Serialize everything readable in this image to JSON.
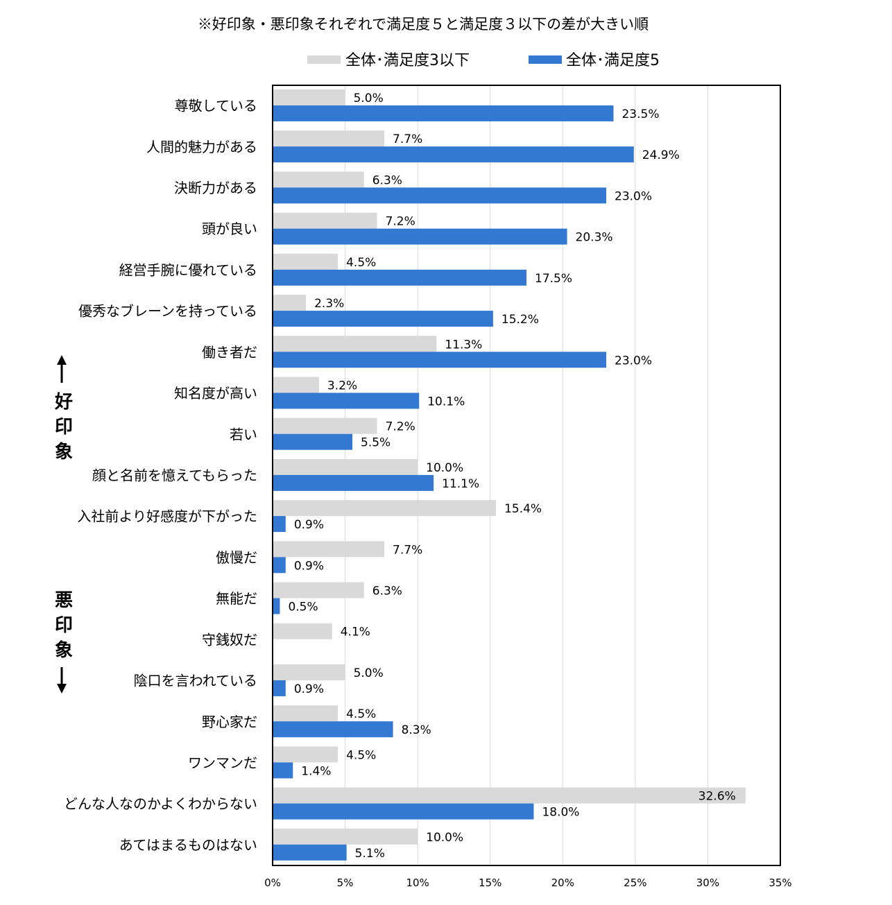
{
  "chart_data": {
    "type": "bar",
    "orientation": "horizontal",
    "title": "※好印象・悪印象それぞれで満足度５と満足度３以下の差が大きい順",
    "categories": [
      "尊敬している",
      "人間的魅力がある",
      "決断力がある",
      "頭が良い",
      "経営手腕に優れている",
      "優秀なブレーンを持っている",
      "働き者だ",
      "知名度が高い",
      "若い",
      "顔と名前を憶えてもらった",
      "入社前より好感度が下がった",
      "傲慢だ",
      "無能だ",
      "守銭奴だ",
      "陰口を言われている",
      "野心家だ",
      "ワンマンだ",
      "どんな人なのかよくわからない",
      "あてはまるものはない"
    ],
    "series": [
      {
        "name": "全体･満足度3以下",
        "color": "#d9d9d9",
        "values": [
          5.0,
          7.7,
          6.3,
          7.2,
          4.5,
          2.3,
          11.3,
          3.2,
          7.2,
          10.0,
          15.4,
          7.7,
          6.3,
          4.1,
          5.0,
          4.5,
          4.5,
          32.6,
          10.0
        ],
        "labels": [
          "5.0%",
          "7.7%",
          "6.3%",
          "7.2%",
          "4.5%",
          "2.3%",
          "11.3%",
          "3.2%",
          "7.2%",
          "10.0%",
          "15.4%",
          "7.7%",
          "6.3%",
          "4.1%",
          "5.0%",
          "4.5%",
          "4.5%",
          "32.6%",
          "10.0%"
        ]
      },
      {
        "name": "全体･満足度5",
        "color": "#3479d1",
        "values": [
          23.5,
          24.9,
          23.0,
          20.3,
          17.5,
          15.2,
          23.0,
          10.1,
          5.5,
          11.1,
          0.9,
          0.9,
          0.5,
          0,
          0.9,
          8.3,
          1.4,
          18.0,
          5.1
        ],
        "labels": [
          "23.5%",
          "24.9%",
          "23.0%",
          "20.3%",
          "17.5%",
          "15.2%",
          "23.0%",
          "10.1%",
          "5.5%",
          "11.1%",
          "0.9%",
          "0.9%",
          "0.5%",
          "",
          "0.9%",
          "8.3%",
          "1.4%",
          "18.0%",
          "5.1%"
        ]
      }
    ],
    "xlim": [
      0,
      35
    ],
    "xticks": [
      "0%",
      "5%",
      "10%",
      "15%",
      "20%",
      "25%",
      "30%",
      "35%"
    ],
    "grid": true,
    "legend": "top",
    "side_labels": {
      "good": "好印象",
      "bad": "悪印象"
    }
  }
}
